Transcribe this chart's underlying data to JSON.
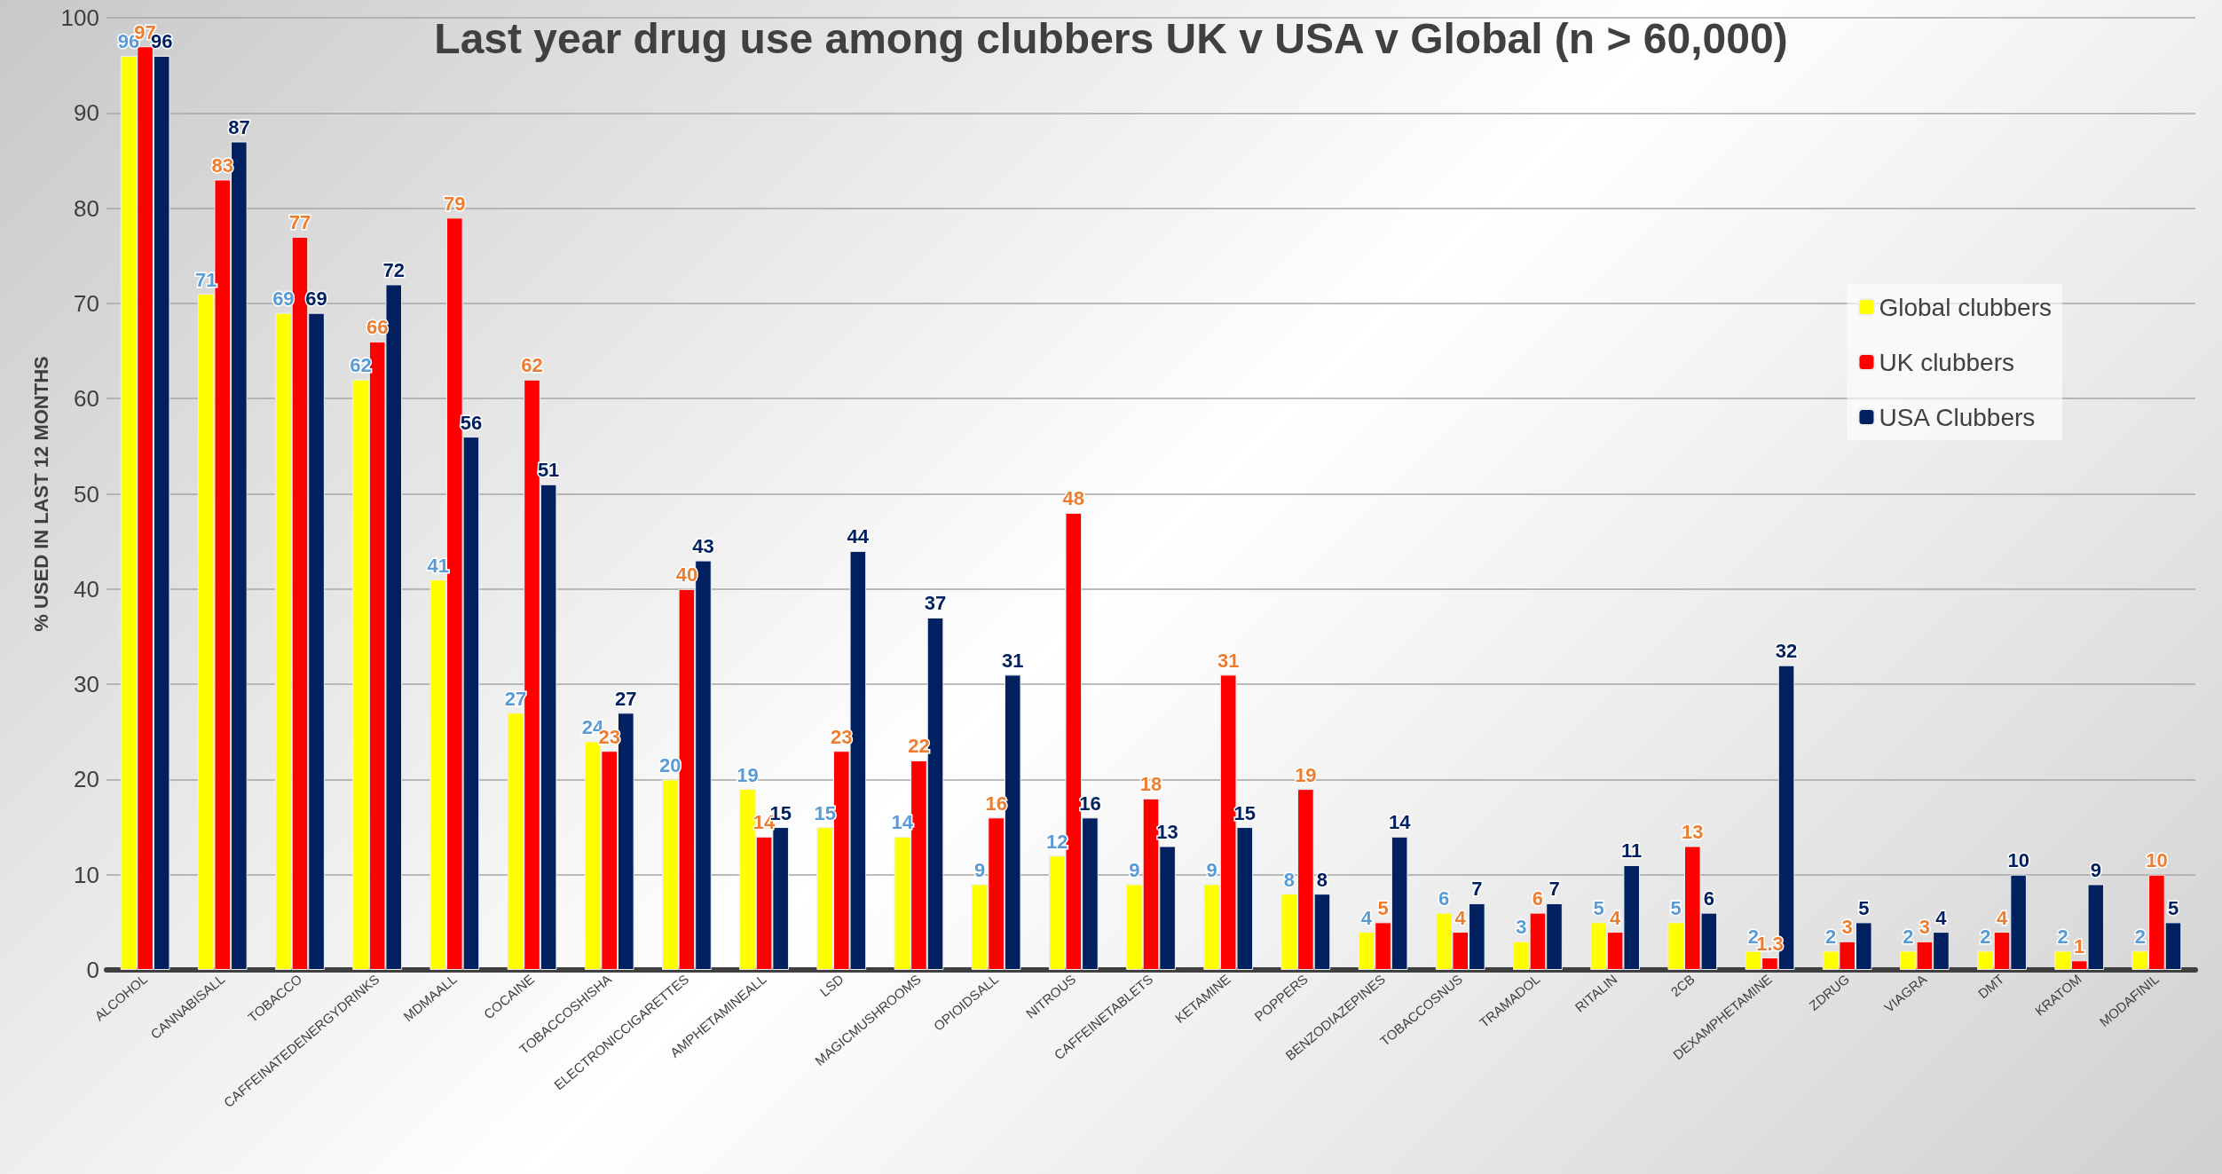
{
  "chart_data": {
    "type": "bar",
    "title": "Last year drug use among clubbers UK v USA v Global (n > 60,000)",
    "ylabel": "% USED IN LAST 12 MONTHS",
    "categories": [
      "ALCOHOL",
      "CANNABISALL",
      "TOBACCO",
      "CAFFEINATEDENERGYDRINKS",
      "MDMAALL",
      "COCAINE",
      "TOBACCOSHISHA",
      "ELECTRONICCIGARETTES",
      "AMPHETAMINEALL",
      "LSD",
      "MAGICMUSHROOMS",
      "OPIOIDSALL",
      "NITROUS",
      "CAFFEINETABLETS",
      "KETAMINE",
      "POPPERS",
      "BENZODIAZEPINES",
      "TOBACCOSNUS",
      "TRAMADOL",
      "RITALIN",
      "2CB",
      "DEXAMPHETAMINE",
      "ZDRUG",
      "VIAGRA",
      "DMT",
      "KRATOM",
      "MODAFINIL"
    ],
    "series": [
      {
        "name": "Global clubbers",
        "color": "#ffff00",
        "values": [
          96,
          71,
          69,
          62,
          41,
          27,
          24,
          20,
          19,
          15,
          14,
          9,
          12,
          9,
          9,
          8,
          4,
          6,
          3,
          5,
          5,
          2,
          2,
          2,
          2,
          2,
          2
        ]
      },
      {
        "name": "UK clubbers",
        "color": "#ff0000",
        "values": [
          97,
          83,
          77,
          66,
          79,
          62,
          23,
          40,
          14,
          23,
          22,
          16,
          48,
          18,
          31,
          19,
          5,
          4,
          6,
          4,
          13,
          1.3,
          3,
          3,
          4,
          1,
          10
        ]
      },
      {
        "name": "USA Clubbers",
        "color": "#002060",
        "values": [
          96,
          87,
          69,
          72,
          56,
          51,
          27,
          43,
          15,
          44,
          37,
          31,
          16,
          13,
          15,
          8,
          14,
          7,
          7,
          11,
          6,
          32,
          5,
          4,
          10,
          9,
          5
        ]
      }
    ],
    "ylim": [
      0,
      100
    ],
    "yticks": [
      0,
      10,
      20,
      30,
      40,
      50,
      60,
      70,
      80,
      90,
      100
    ],
    "grid": "y",
    "legend": "top right",
    "data_labels": true
  }
}
